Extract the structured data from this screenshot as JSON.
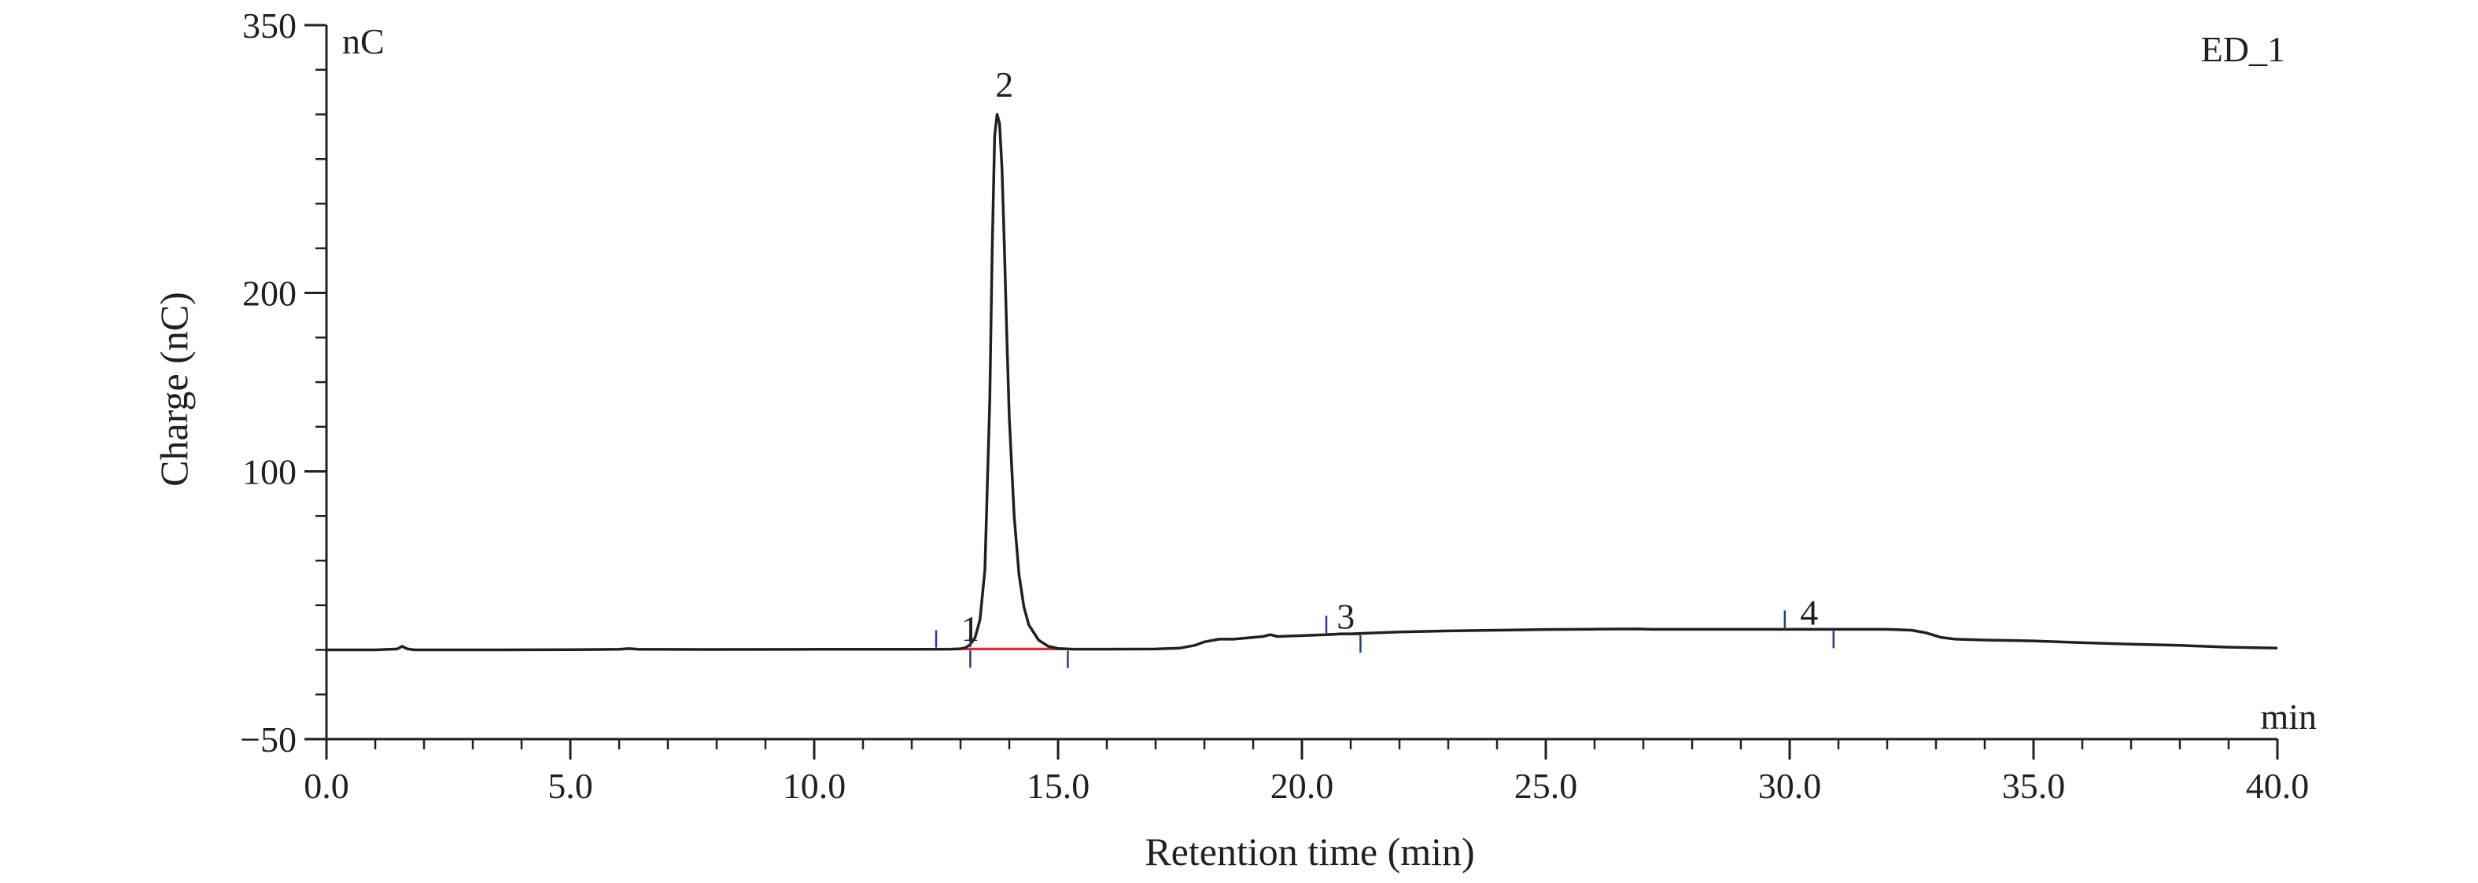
{
  "chart_data": {
    "type": "line",
    "trace_name": "ED_1",
    "xlabel": "Retention time (min)",
    "ylabel": "Charge (nC)",
    "x_unit": "min",
    "y_unit": "nC",
    "xlim": [
      0,
      40
    ],
    "ylim": [
      -50,
      350
    ],
    "x_ticks": [
      0,
      5,
      10,
      15,
      20,
      25,
      30,
      35,
      40
    ],
    "x_tick_labels": [
      "0.0",
      "5.0",
      "10.0",
      "15.0",
      "20.0",
      "25.0",
      "30.0",
      "35.0",
      "40.0"
    ],
    "y_ticks": [
      -50,
      100,
      200,
      350
    ],
    "y_tick_labels": [
      "−50",
      "100",
      "200",
      "350"
    ],
    "y_minor_step": 25,
    "grid": false,
    "colors": {
      "trace": "#231f20",
      "baseline": "#e8262d",
      "marker": "#1f3c8f",
      "axis": "#231f20"
    },
    "trace": {
      "x": [
        0.0,
        1.0,
        1.45,
        1.55,
        1.65,
        1.8,
        3.0,
        5.0,
        6.0,
        6.2,
        6.4,
        8.0,
        10.0,
        12.0,
        12.8,
        13.0,
        13.1,
        13.2,
        13.3,
        13.4,
        13.5,
        13.6,
        13.65,
        13.7,
        13.75,
        13.8,
        13.85,
        13.9,
        13.95,
        14.0,
        14.1,
        14.2,
        14.3,
        14.4,
        14.6,
        14.8,
        15.0,
        15.3,
        16.0,
        17.0,
        17.5,
        17.8,
        18.0,
        18.3,
        18.6,
        19.0,
        19.2,
        19.35,
        19.5,
        19.8,
        20.2,
        20.6,
        20.8,
        21.0,
        21.5,
        22.0,
        23.0,
        24.0,
        25.0,
        26.0,
        26.9,
        27.2,
        28.0,
        29.0,
        30.0,
        31.0,
        32.0,
        32.5,
        32.8,
        33.1,
        33.4,
        34.0,
        35.0,
        36.0,
        37.0,
        38.0,
        39.0,
        40.0
      ],
      "y": [
        0.0,
        0.0,
        0.5,
        2.0,
        0.6,
        0.0,
        0.0,
        0.1,
        0.3,
        0.7,
        0.3,
        0.2,
        0.3,
        0.3,
        0.4,
        0.6,
        1.2,
        3.0,
        7.0,
        17.0,
        45.0,
        140.0,
        225.0,
        288.0,
        300.0,
        295.0,
        270.0,
        225.0,
        175.0,
        130.0,
        75.0,
        42.0,
        24.0,
        14.0,
        5.5,
        2.0,
        0.8,
        0.4,
        0.4,
        0.5,
        1.0,
        2.5,
        4.5,
        6.0,
        6.0,
        7.0,
        7.5,
        8.5,
        7.5,
        7.8,
        8.2,
        8.6,
        9.0,
        9.0,
        9.5,
        10.0,
        10.6,
        11.0,
        11.4,
        11.6,
        11.7,
        11.5,
        11.5,
        11.5,
        11.5,
        11.5,
        11.5,
        11.0,
        9.5,
        7.0,
        6.0,
        5.5,
        5.0,
        4.0,
        3.2,
        2.5,
        1.5,
        1.0
      ]
    },
    "peaks": [
      {
        "label": "1",
        "label_x": 13.2,
        "label_y": 5,
        "start_x": 12.5,
        "start_y": 0.4,
        "end_x": 13.2,
        "end_y": 0.6,
        "baseline_y": 0.5,
        "baseline_end_x": 15.2
      },
      {
        "label": "2",
        "label_x": 13.9,
        "label_y": 310,
        "start_x": 13.2,
        "start_y": 0.6,
        "end_x": 15.2,
        "end_y": 0.4,
        "baseline_y": 0.5,
        "baseline_end_x": 15.2
      },
      {
        "label": "3",
        "label_x": 20.9,
        "label_y": 12,
        "start_x": 20.5,
        "start_y": 8.6,
        "end_x": 21.2,
        "end_y": 9.0,
        "baseline_y": 8.8,
        "baseline_end_x": 21.2
      },
      {
        "label": "4",
        "label_x": 30.4,
        "label_y": 14,
        "start_x": 29.9,
        "start_y": 11.5,
        "end_x": 30.9,
        "end_y": 11.5,
        "baseline_y": 11.5,
        "baseline_end_x": 30.9
      }
    ]
  }
}
